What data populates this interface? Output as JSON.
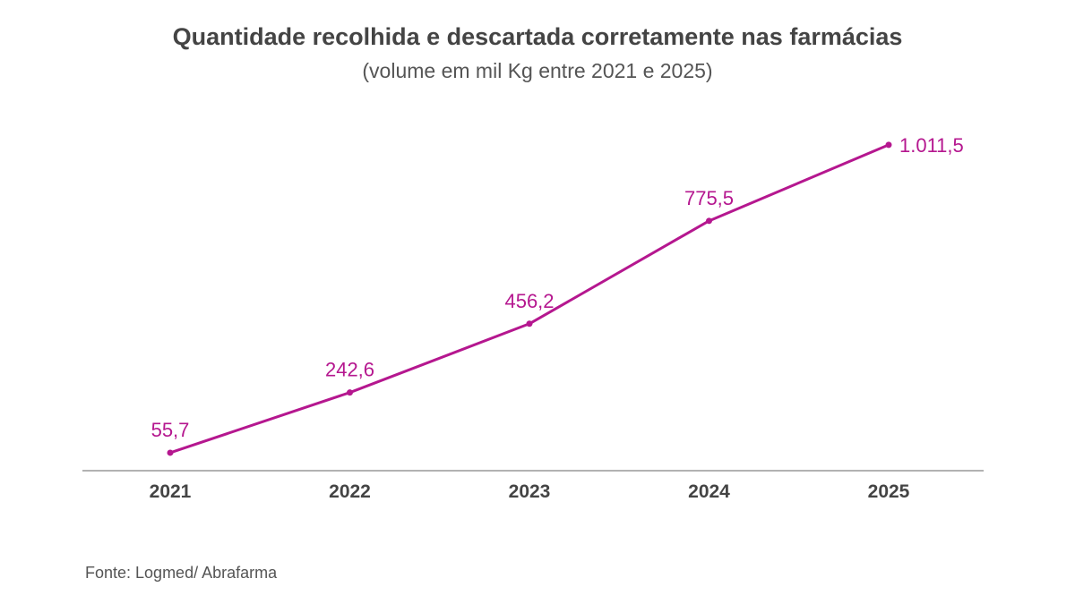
{
  "chart_data": {
    "type": "line",
    "title": "Quantidade recolhida e descartada corretamente nas farmácias",
    "subtitle": "(volume em mil Kg entre 2021 e 2025)",
    "categories": [
      "2021",
      "2022",
      "2023",
      "2024",
      "2025"
    ],
    "values": [
      55.7,
      242.6,
      456.2,
      775.5,
      1011.5
    ],
    "data_labels": [
      "55,7",
      "242,6",
      "456,2",
      "775,5",
      "1.011,5"
    ],
    "xlabel": "",
    "ylabel": "",
    "ylim": [
      0,
      1100
    ],
    "grid": false,
    "color": "#b5178f"
  },
  "source": "Fonte: Logmed/ Abrafarma"
}
